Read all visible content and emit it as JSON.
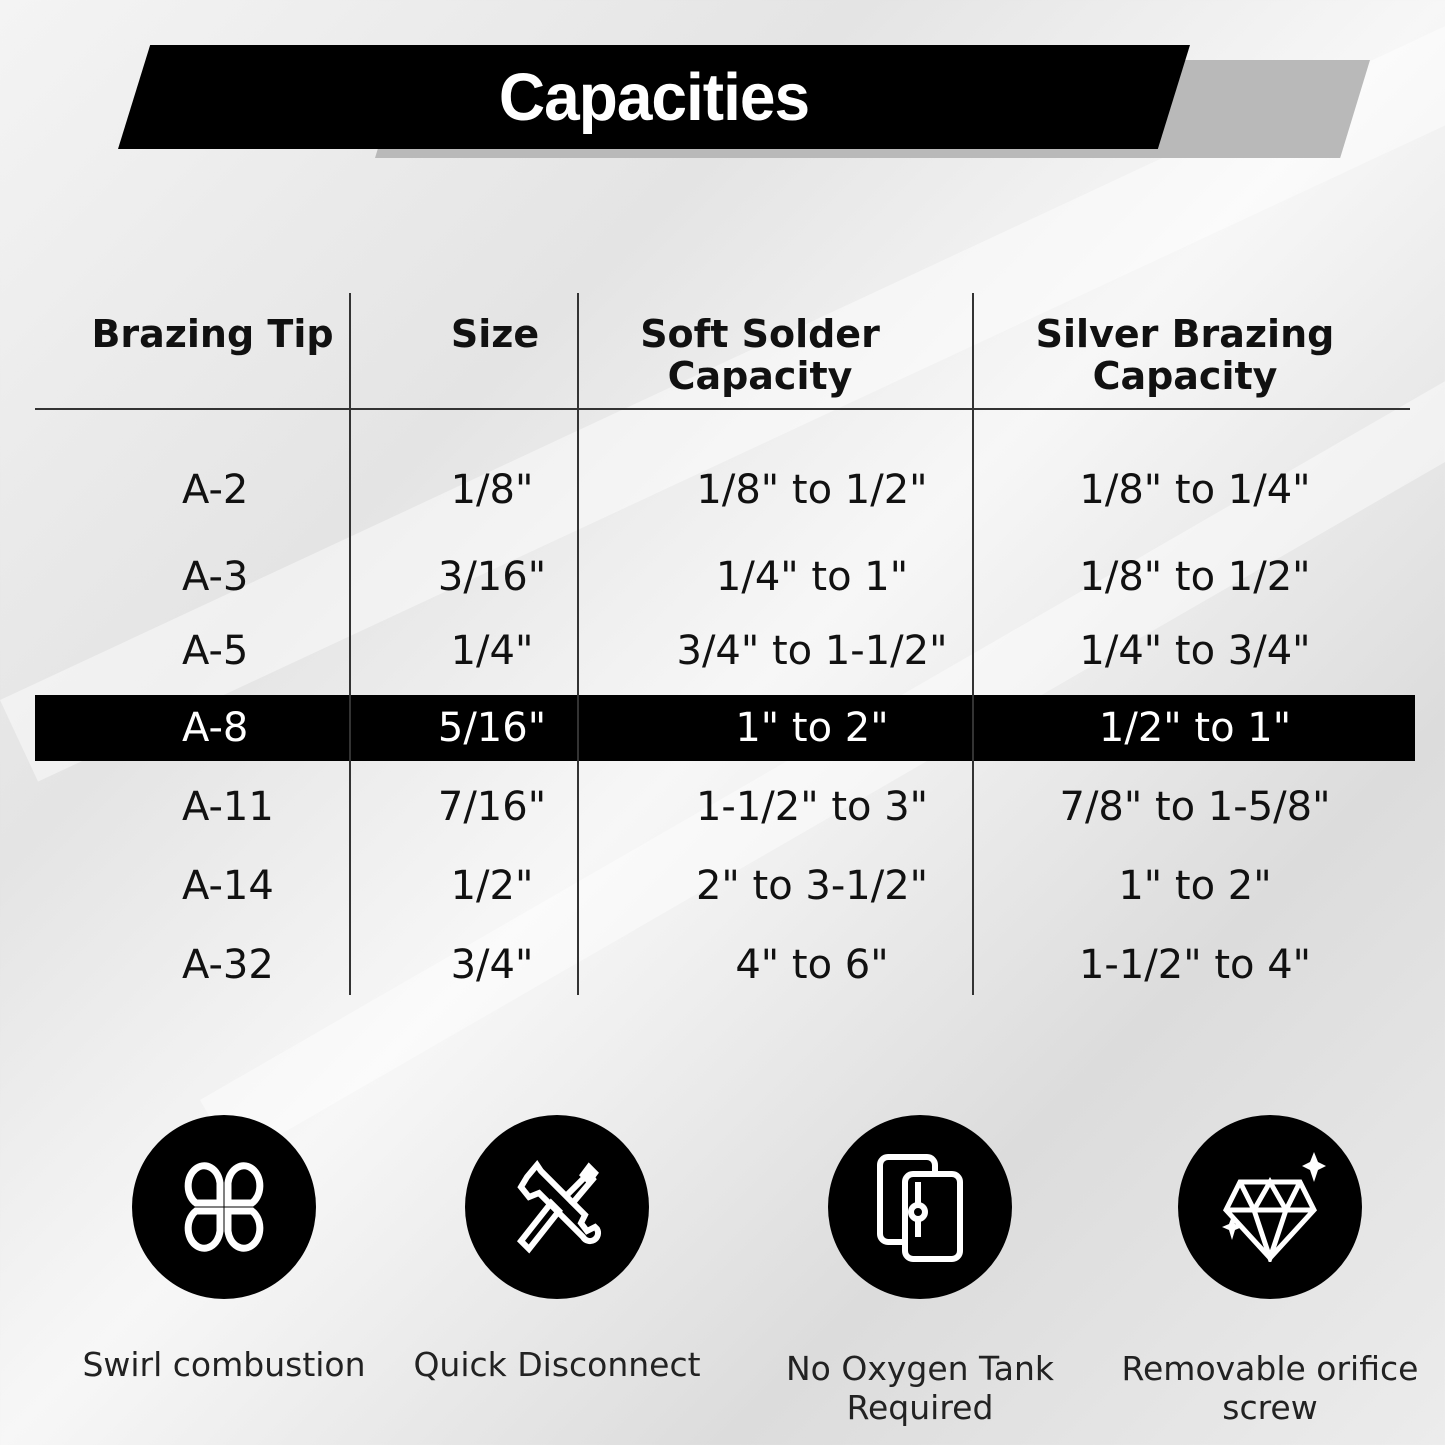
{
  "title": "Capacities",
  "table": {
    "headers": [
      "Brazing Tip",
      "Size",
      "Soft Solder Capacity",
      "Silver Brazing Capacity"
    ],
    "highlighted_row": "A-8",
    "rows": [
      [
        "A-2",
        "1/8\"",
        "1/8\" to 1/2\"",
        "1/8\" to 1/4\""
      ],
      [
        "A-3",
        "3/16\"",
        "1/4\" to 1\"",
        "1/8\" to 1/2\""
      ],
      [
        "A-5",
        "1/4\"",
        "3/4\" to 1-1/2\"",
        "1/4\" to 3/4\""
      ],
      [
        "A-8",
        "5/16\"",
        "1\" to 2\"",
        "1/2\" to 1\""
      ],
      [
        "A-11",
        "7/16\"",
        "1-1/2\" to 3\"",
        "7/8\" to 1-5/8\""
      ],
      [
        "A-14",
        "1/2\"",
        "2\" to 3-1/2\"",
        "1\" to 2\""
      ],
      [
        "A-32",
        "3/4\"",
        "4\" to 6\"",
        "1-1/2\" to 4\""
      ]
    ]
  },
  "features": [
    {
      "label": "Swirl combustion",
      "icon": "swirl-icon"
    },
    {
      "label": "Quick Disconnect",
      "icon": "tools-icon"
    },
    {
      "label": "No Oxygen Tank Required",
      "icon": "tank-icon"
    },
    {
      "label": "Removable orifice screw",
      "icon": "diamond-icon"
    }
  ]
}
